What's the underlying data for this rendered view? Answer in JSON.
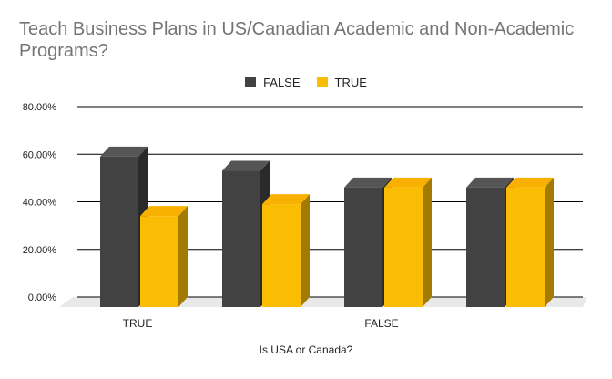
{
  "chart_data": {
    "type": "bar",
    "title": "Teach Business Plans in US/Canadian Academic and Non-Academic Programs?",
    "xlabel": "Is USA or Canada?",
    "ylabel": "",
    "ylim": [
      0,
      0.8
    ],
    "yticks": [
      0,
      0.2,
      0.4,
      0.6,
      0.8
    ],
    "ytick_labels": [
      "0.00%",
      "20.00%",
      "40.00%",
      "60.00%",
      "80.00%"
    ],
    "groups": [
      "TRUE",
      "",
      "FALSE",
      ""
    ],
    "series": [
      {
        "name": "FALSE",
        "values": [
          0.59,
          0.53,
          0.46,
          0.46
        ],
        "color": "#424242",
        "side_color": "#2a2a2a",
        "top_color": "#555555"
      },
      {
        "name": "TRUE",
        "values": [
          0.34,
          0.39,
          0.46,
          0.46
        ],
        "color": "#FBBC04",
        "side_color": "#a37a02",
        "top_color": "#f9b101"
      }
    ],
    "legend_position": "top-center",
    "floor_color": "#e9e9e9",
    "grid_color": "#000000"
  }
}
